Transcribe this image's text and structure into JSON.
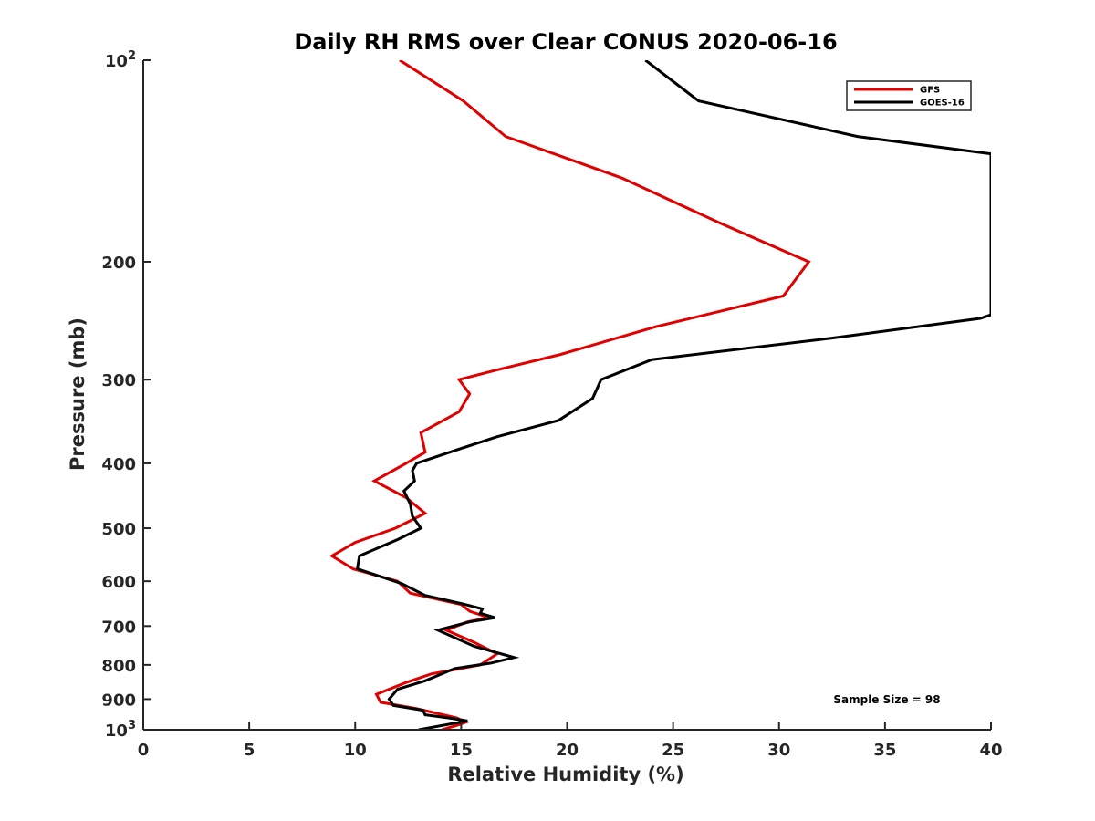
{
  "chart_data": {
    "type": "line",
    "title": "Daily RH RMS over Clear CONUS 2020-06-16",
    "xlabel": "Relative Humidity (%)",
    "ylabel": "Pressure (mb)",
    "xlim": [
      0,
      40
    ],
    "ylim": [
      100,
      1000
    ],
    "yscale": "log",
    "y_reversed": true,
    "xticks": [
      0,
      5,
      10,
      15,
      20,
      25,
      30,
      35,
      40
    ],
    "xtick_labels": [
      "0",
      "5",
      "10",
      "15",
      "20",
      "25",
      "30",
      "35",
      "40"
    ],
    "yticks": [
      100,
      200,
      300,
      400,
      500,
      600,
      700,
      800,
      900,
      1000
    ],
    "ytick_labels": [
      {
        "base": "10",
        "exp": "2"
      },
      {
        "base": "200",
        "exp": ""
      },
      {
        "base": "300",
        "exp": ""
      },
      {
        "base": "400",
        "exp": ""
      },
      {
        "base": "500",
        "exp": ""
      },
      {
        "base": "600",
        "exp": ""
      },
      {
        "base": "700",
        "exp": ""
      },
      {
        "base": "800",
        "exp": ""
      },
      {
        "base": "900",
        "exp": ""
      },
      {
        "base": "10",
        "exp": "3"
      }
    ],
    "grid": false,
    "legend_position": "top-right",
    "annotation": "Sample Size = 98",
    "series": [
      {
        "name": "GFS",
        "color": "#e00000",
        "points": [
          [
            12.1,
            100
          ],
          [
            15.1,
            115
          ],
          [
            17.1,
            130
          ],
          [
            22.6,
            150
          ],
          [
            27.2,
            175
          ],
          [
            31.4,
            200
          ],
          [
            30.2,
            225
          ],
          [
            24.2,
            250
          ],
          [
            19.7,
            275
          ],
          [
            16.7,
            290
          ],
          [
            14.9,
            300
          ],
          [
            15.4,
            315
          ],
          [
            14.9,
            335
          ],
          [
            13.1,
            360
          ],
          [
            13.3,
            385
          ],
          [
            12.4,
            400
          ],
          [
            10.9,
            425
          ],
          [
            12.4,
            450
          ],
          [
            13.3,
            475
          ],
          [
            11.9,
            500
          ],
          [
            10.0,
            525
          ],
          [
            8.9,
            550
          ],
          [
            9.9,
            575
          ],
          [
            12.0,
            600
          ],
          [
            12.6,
            625
          ],
          [
            15.0,
            650
          ],
          [
            15.4,
            665
          ],
          [
            16.0,
            675
          ],
          [
            16.3,
            680
          ],
          [
            15.3,
            690
          ],
          [
            14.3,
            710
          ],
          [
            15.6,
            740
          ],
          [
            16.7,
            770
          ],
          [
            15.9,
            800
          ],
          [
            13.6,
            825
          ],
          [
            12.4,
            850
          ],
          [
            11.0,
            885
          ],
          [
            11.2,
            910
          ],
          [
            12.9,
            930
          ],
          [
            14.8,
            960
          ],
          [
            15.2,
            975
          ],
          [
            14.8,
            985
          ],
          [
            14.1,
            1000
          ]
        ]
      },
      {
        "name": "GOES-16",
        "color": "#000000",
        "points": [
          [
            23.7,
            100
          ],
          [
            26.2,
            115
          ],
          [
            33.7,
            130
          ],
          [
            40.0,
            138
          ],
          [
            40.0,
            240
          ],
          [
            39.5,
            243
          ],
          [
            32.5,
            260
          ],
          [
            24.0,
            280
          ],
          [
            21.6,
            300
          ],
          [
            21.2,
            320
          ],
          [
            19.6,
            345
          ],
          [
            16.7,
            365
          ],
          [
            15.0,
            380
          ],
          [
            12.9,
            400
          ],
          [
            12.7,
            410
          ],
          [
            12.8,
            425
          ],
          [
            12.3,
            440
          ],
          [
            12.6,
            460
          ],
          [
            12.7,
            480
          ],
          [
            13.1,
            500
          ],
          [
            12.0,
            520
          ],
          [
            10.2,
            550
          ],
          [
            10.1,
            575
          ],
          [
            12.2,
            605
          ],
          [
            13.3,
            630
          ],
          [
            15.2,
            650
          ],
          [
            16.0,
            660
          ],
          [
            15.9,
            670
          ],
          [
            16.6,
            680
          ],
          [
            15.4,
            690
          ],
          [
            13.9,
            710
          ],
          [
            15.6,
            750
          ],
          [
            17.5,
            780
          ],
          [
            16.4,
            795
          ],
          [
            14.7,
            810
          ],
          [
            13.3,
            845
          ],
          [
            12.0,
            870
          ],
          [
            11.6,
            900
          ],
          [
            11.8,
            920
          ],
          [
            13.2,
            935
          ],
          [
            13.3,
            950
          ],
          [
            14.4,
            960
          ],
          [
            15.3,
            970
          ],
          [
            13.0,
            1000
          ]
        ]
      }
    ]
  }
}
